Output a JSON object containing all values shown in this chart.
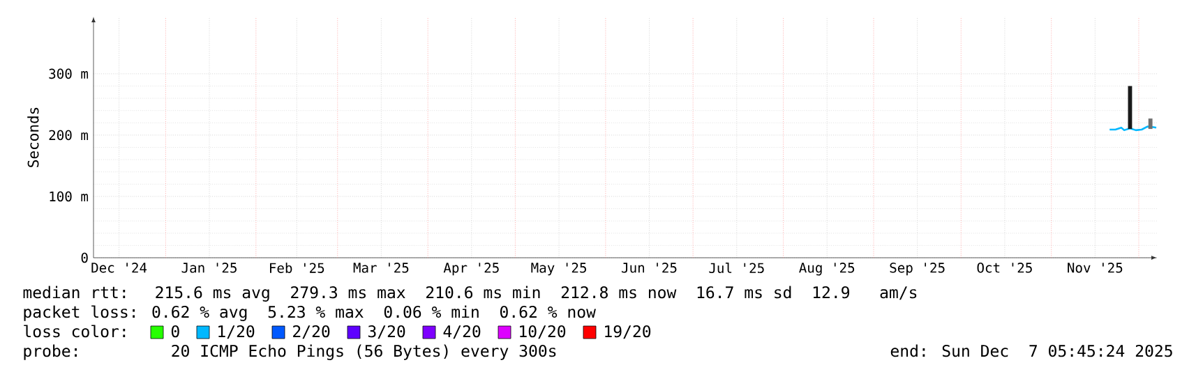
{
  "chart_data": {
    "type": "line",
    "ylabel": "Seconds",
    "xlim": [
      "2024-12-07T05:45",
      "2025-12-07T05:45"
    ],
    "ylim": [
      0,
      393
    ],
    "yticks": [
      {
        "value": 0,
        "label": "0"
      },
      {
        "value": 100,
        "label": "100 m"
      },
      {
        "value": 200,
        "label": "200 m"
      },
      {
        "value": 300,
        "label": "300 m"
      }
    ],
    "xticks": [
      {
        "value": "2024-12-16",
        "label": "Dec '24"
      },
      {
        "value": "2025-01-01",
        "label": null
      },
      {
        "value": "2025-01-16",
        "label": "Jan '25"
      },
      {
        "value": "2025-02-01",
        "label": null
      },
      {
        "value": "2025-02-15",
        "label": "Feb '25"
      },
      {
        "value": "2025-03-01",
        "label": null
      },
      {
        "value": "2025-03-16",
        "label": "Mar '25"
      },
      {
        "value": "2025-04-01",
        "label": null
      },
      {
        "value": "2025-04-16",
        "label": "Apr '25"
      },
      {
        "value": "2025-05-01",
        "label": null
      },
      {
        "value": "2025-05-16",
        "label": "May '25"
      },
      {
        "value": "2025-06-01",
        "label": null
      },
      {
        "value": "2025-06-16",
        "label": "Jun '25"
      },
      {
        "value": "2025-07-01",
        "label": null
      },
      {
        "value": "2025-07-16",
        "label": "Jul '25"
      },
      {
        "value": "2025-08-01",
        "label": null
      },
      {
        "value": "2025-08-16",
        "label": "Aug '25"
      },
      {
        "value": "2025-09-01",
        "label": null
      },
      {
        "value": "2025-09-16",
        "label": "Sep '25"
      },
      {
        "value": "2025-10-01",
        "label": null
      },
      {
        "value": "2025-10-16",
        "label": "Oct '25"
      },
      {
        "value": "2025-11-01",
        "label": null
      },
      {
        "value": "2025-11-16",
        "label": "Nov '25"
      },
      {
        "value": "2025-12-01",
        "label": null
      }
    ],
    "grid": true,
    "legend": "bottom",
    "legend_title": "loss color:",
    "x": [
      "2025-11-21",
      "2025-11-23",
      "2025-11-25",
      "2025-11-26",
      "2025-11-28",
      "2025-11-30",
      "2025-12-02",
      "2025-12-04",
      "2025-12-06",
      "2025-12-07"
    ],
    "series": [
      {
        "name": "0",
        "color": "#26ff00",
        "values": [
          null,
          null,
          null,
          null,
          null,
          null,
          null,
          null,
          null,
          null
        ]
      },
      {
        "name": "1/20",
        "color": "#00b8ff",
        "values": [
          209,
          209,
          212,
          208,
          211,
          208,
          209,
          214,
          213,
          212
        ]
      },
      {
        "name": "2/20",
        "color": "#0059ff",
        "values": [
          null,
          null,
          null,
          null,
          null,
          null,
          null,
          null,
          null,
          null
        ]
      },
      {
        "name": "3/20",
        "color": "#5e00ff",
        "values": [
          null,
          null,
          null,
          null,
          null,
          null,
          null,
          null,
          null,
          null
        ]
      },
      {
        "name": "4/20",
        "color": "#7e00ff",
        "values": [
          null,
          null,
          null,
          null,
          null,
          null,
          null,
          null,
          null,
          null
        ]
      },
      {
        "name": "10/20",
        "color": "#dd00ff",
        "values": [
          null,
          null,
          null,
          null,
          null,
          null,
          null,
          null,
          null,
          null
        ]
      },
      {
        "name": "19/20",
        "color": "#ff0000",
        "values": [
          null,
          null,
          null,
          null,
          null,
          null,
          null,
          null,
          null,
          null
        ]
      },
      {
        "type": "bar",
        "x": [
          "2025-11-28",
          "2025-12-05"
        ],
        "base": [
          210,
          210
        ],
        "values": [
          70,
          17
        ],
        "colors": [
          "#1a1a1a",
          "#707070"
        ]
      }
    ],
    "annotations": [
      "median rtt:  215.6 ms avg  279.3 ms max  210.6 ms min  212.8 ms now  16.7 ms sd  12.9   am/s",
      "packet loss: 0.62 % avg  5.23 % max  0.06 % min  0.62 % now",
      "probe:       20 ICMP Echo Pings (56 Bytes) every 300s",
      "end: Sun Dec  7 05:45:24 2025"
    ]
  }
}
